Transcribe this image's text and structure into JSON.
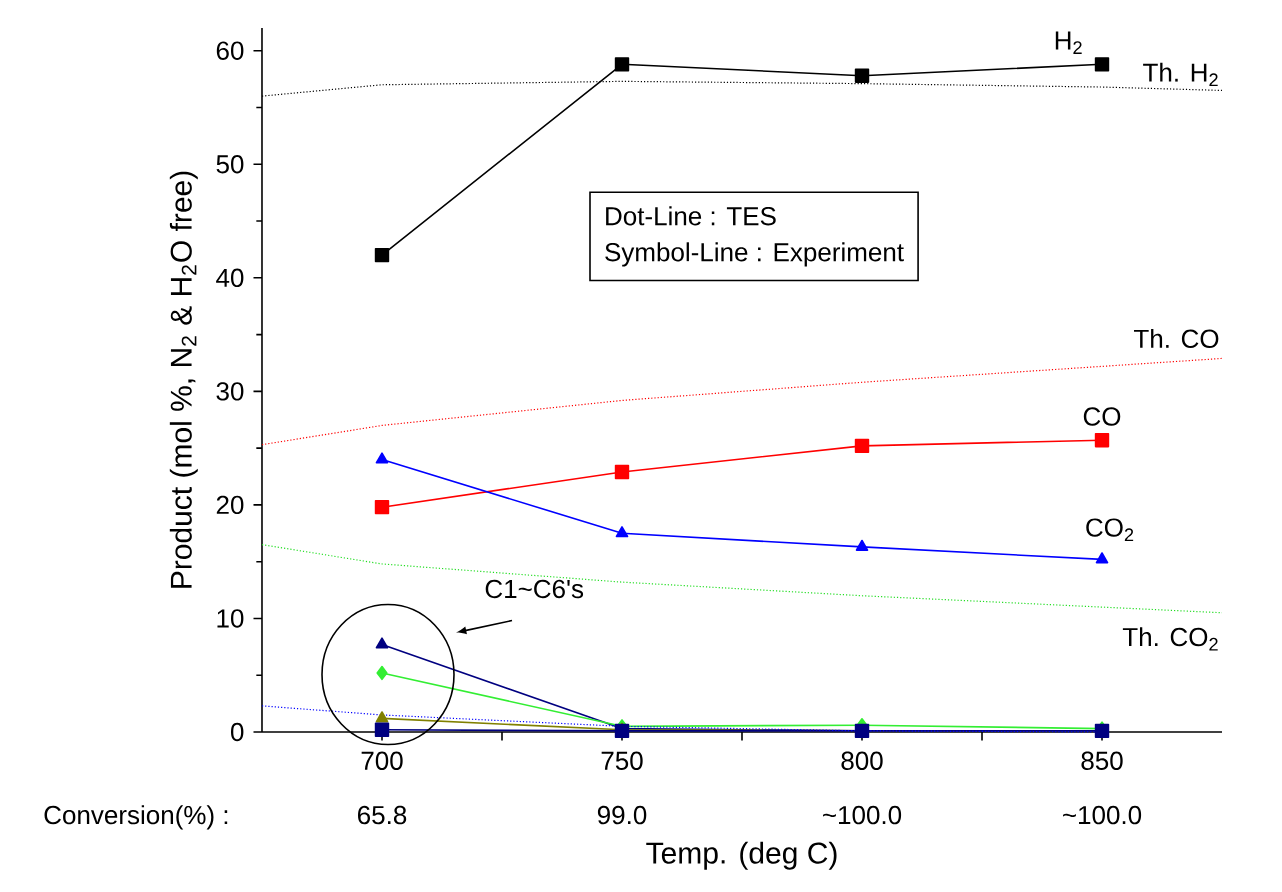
{
  "chart_data": {
    "type": "line",
    "xlabel": "Temp. (deg C)",
    "ylabel": "Product (mol %, N$_{2}$ & H$_{2}$O free)",
    "xlim": [
      675,
      875
    ],
    "ylim": [
      0,
      62
    ],
    "xticks": [
      700,
      {
        "value": 725,
        "label": null
      },
      750,
      {
        "value": 775,
        "label": null
      },
      800,
      {
        "value": 825,
        "label": null
      },
      850
    ],
    "yticks": [
      0,
      10,
      20,
      30,
      40,
      50,
      60
    ],
    "grid": false,
    "x": [
      700,
      750,
      800,
      850
    ],
    "series": [
      {
        "name": "H$_{2}$",
        "color": "#000000",
        "marker": "square",
        "line_style": "solid",
        "values": [
          42,
          58.8,
          57.8,
          58.8
        ]
      },
      {
        "name": "CO",
        "color": "#ff0000",
        "marker": "square",
        "line_style": "solid",
        "values": [
          19.8,
          22.9,
          25.2,
          25.7
        ]
      },
      {
        "name": "CO$_{2}$",
        "color": "#0000ff",
        "marker": "triangle",
        "line_style": "solid",
        "values": [
          24,
          17.5,
          16.3,
          15.2
        ]
      },
      {
        "color": "#000080",
        "marker": "triangle",
        "line_style": "solid",
        "values": [
          7.7,
          0.3,
          0.1,
          0.1
        ]
      },
      {
        "color": "#33ee33",
        "marker": "diamond",
        "line_style": "solid",
        "values": [
          5.2,
          0.5,
          0.6,
          0.3
        ]
      },
      {
        "color": "#808000",
        "marker": "triangle",
        "line_style": "solid",
        "values": [
          1.2,
          0.2,
          0.1,
          0.1
        ]
      },
      {
        "color": "#000080",
        "marker": "square",
        "line_style": "solid",
        "values": [
          0.2,
          0.1,
          0.1,
          0.1
        ]
      },
      {
        "name": "Th. H$_{2}$",
        "color": "#000000",
        "marker": "none",
        "line_style": "dotted",
        "x": [
          675,
          700,
          750,
          800,
          850,
          875
        ],
        "values": [
          56,
          57,
          57.3,
          57.1,
          56.8,
          56.5
        ]
      },
      {
        "name": "Th. CO",
        "color": "#ff0000",
        "marker": "none",
        "line_style": "dotted",
        "x": [
          675,
          700,
          750,
          800,
          850,
          875
        ],
        "values": [
          25.3,
          27,
          29.2,
          30.8,
          32.2,
          32.9
        ]
      },
      {
        "name": "Th. CO$_{2}$",
        "color": "#22dd22",
        "marker": "none",
        "line_style": "dotted",
        "x": [
          675,
          700,
          750,
          800,
          850,
          875
        ],
        "values": [
          16.5,
          14.8,
          13.2,
          12,
          11,
          10.5
        ]
      },
      {
        "color": "#0000ff",
        "marker": "none",
        "line_style": "dotted",
        "x": [
          675,
          700,
          750,
          800,
          850
        ],
        "values": [
          2.3,
          1.5,
          0.5,
          0.1,
          0
        ]
      }
    ],
    "annotations": [
      "Dot-Line      :  TES",
      "Symbol-Line :  Experiment",
      "C1~C6's",
      "Conversion(%) :",
      "65.8",
      "99.0",
      "~100.0",
      "~100.0"
    ]
  }
}
